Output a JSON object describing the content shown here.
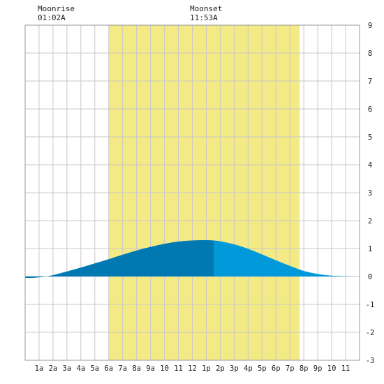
{
  "header": {
    "moonrise_label": "Moonrise",
    "moonrise_time": "01:02A",
    "moonset_label": "Moonset",
    "moonset_time": "11:53A"
  },
  "chart_data": {
    "type": "area",
    "title": "",
    "xlabel": "",
    "ylabel": "",
    "xlim": [
      0,
      24
    ],
    "ylim": [
      -3,
      9
    ],
    "x_tick_labels": [
      "1a",
      "2a",
      "3a",
      "4a",
      "5a",
      "6a",
      "7a",
      "8a",
      "9a",
      "10",
      "11",
      "12",
      "1p",
      "2p",
      "3p",
      "4p",
      "5p",
      "6p",
      "7p",
      "8p",
      "9p",
      "10",
      "11"
    ],
    "y_ticks": [
      -3,
      -2,
      -1,
      0,
      1,
      2,
      3,
      4,
      5,
      6,
      7,
      8,
      9
    ],
    "grid": true,
    "daylight": {
      "start_hour": 6.0,
      "end_hour": 19.7
    },
    "moonrise_hour": 1.03,
    "moonset_hour": 11.88,
    "series": [
      {
        "x": [
          0,
          0.5,
          1,
          1.5,
          2,
          3,
          4,
          5,
          6,
          7,
          8,
          9,
          10,
          11,
          12,
          13,
          13.5,
          14,
          15,
          16,
          17,
          18,
          19,
          20,
          21,
          22,
          23,
          24
        ],
        "values": [
          -0.05,
          -0.05,
          -0.03,
          0.0,
          0.05,
          0.18,
          0.32,
          0.47,
          0.62,
          0.78,
          0.93,
          1.06,
          1.17,
          1.25,
          1.29,
          1.3,
          1.29,
          1.26,
          1.15,
          0.99,
          0.79,
          0.58,
          0.38,
          0.2,
          0.09,
          0.03,
          0.01,
          0.0
        ]
      }
    ],
    "colors": {
      "daylight": "#f3ea85",
      "fill_before": "#0079b3",
      "fill_after": "#0099d9",
      "grid": "#c8c8c8"
    },
    "split_hour": 13.55
  }
}
